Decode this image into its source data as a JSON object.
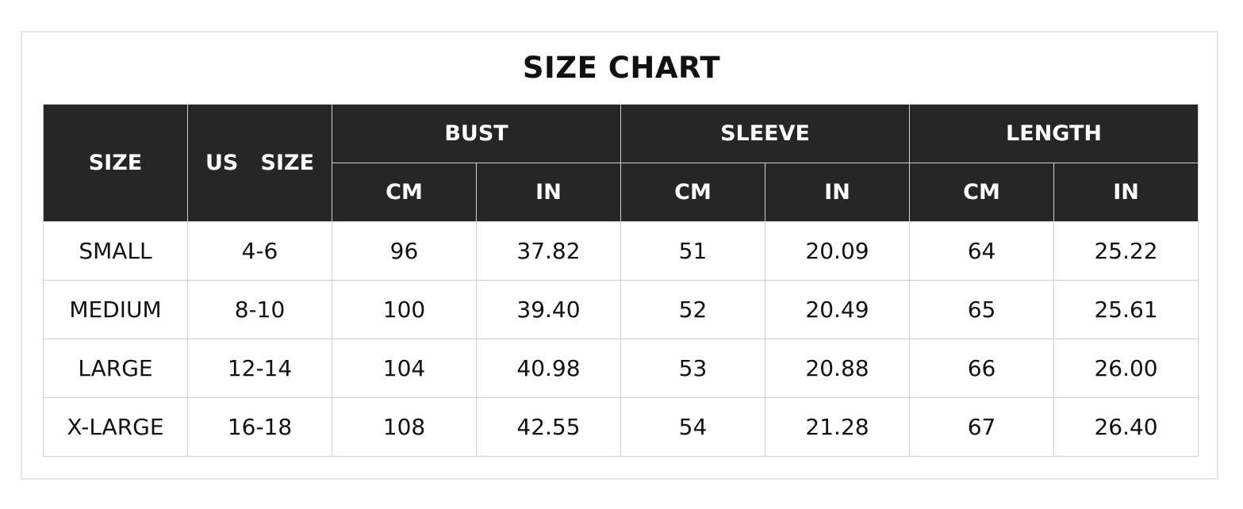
{
  "title": "SIZE CHART",
  "header": {
    "size": "SIZE",
    "us_size": "US   SIZE",
    "groups": [
      "BUST",
      "SLEEVE",
      "LENGTH"
    ],
    "units": [
      "CM",
      "IN",
      "CM",
      "IN",
      "CM",
      "IN"
    ]
  },
  "rows": [
    [
      "SMALL",
      "4-6",
      "96",
      "37.82",
      "51",
      "20.09",
      "64",
      "25.22"
    ],
    [
      "MEDIUM",
      "8-10",
      "100",
      "39.40",
      "52",
      "20.49",
      "65",
      "25.61"
    ],
    [
      "LARGE",
      "12-14",
      "104",
      "40.98",
      "53",
      "20.88",
      "66",
      "26.00"
    ],
    [
      "X-LARGE",
      "16-18",
      "108",
      "42.55",
      "54",
      "21.28",
      "67",
      "26.40"
    ]
  ],
  "colors": {
    "header_bg": "#262626",
    "header_text": "#ffffff",
    "border": "#d0d0d0"
  }
}
